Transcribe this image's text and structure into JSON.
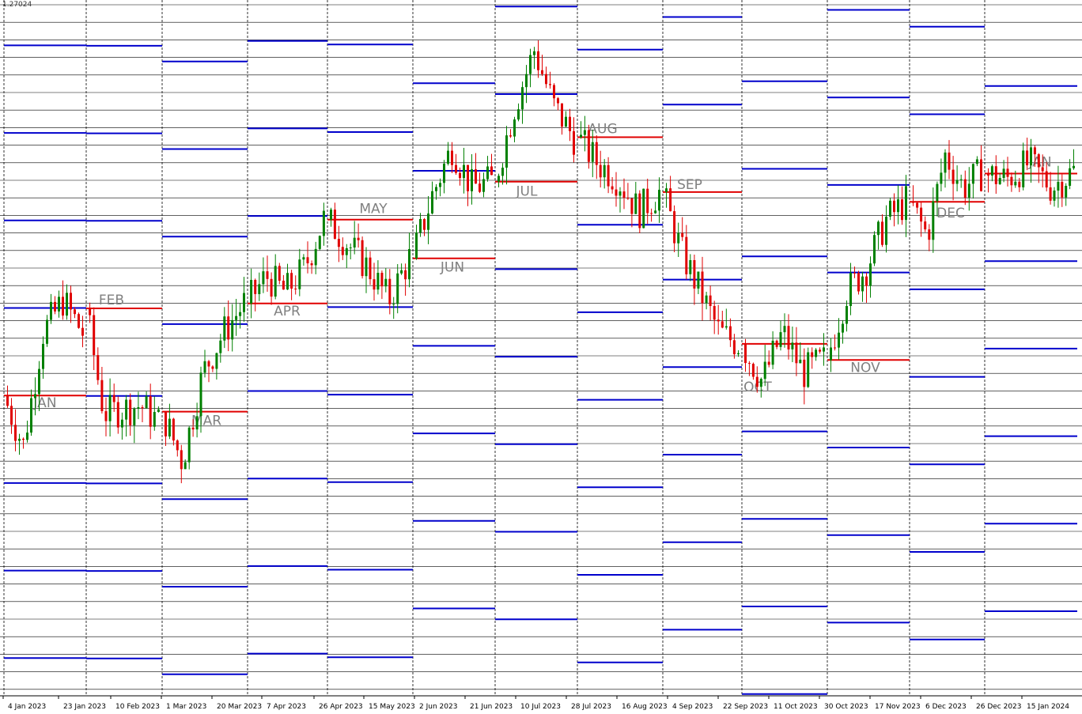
{
  "price_label": "1.27024",
  "colors": {
    "background": "#ffffff",
    "bull": "#008000",
    "bear": "#e00000",
    "open_line": "#e00000",
    "level_line": "#0000cc",
    "grid_line": "#000000",
    "month_text": "#808080"
  },
  "chart_data": {
    "type": "candlestick",
    "title": "",
    "xlabel": "",
    "ylabel": "",
    "ylim": [
      1.185,
      1.271
    ],
    "grid": true,
    "x_ticks": [
      "4 Jan 2023",
      "23 Jan 2023",
      "10 Feb 2023",
      "1 Mar 2023",
      "20 Mar 2023",
      "7 Apr 2023",
      "26 Apr 2023",
      "15 May 2023",
      "2 Jun 2023",
      "21 Jun 2023",
      "10 Jul 2023",
      "28 Jul 2023",
      "16 Aug 2023",
      "4 Sep 2023",
      "22 Sep 2023",
      "11 Oct 2023",
      "30 Oct 2023",
      "17 Nov 2023",
      "6 Dec 2023",
      "26 Dec 2023",
      "15 Jan 2024"
    ],
    "months": [
      {
        "label": "JAN",
        "open": 1.2222
      },
      {
        "label": "FEB",
        "open": 1.233
      },
      {
        "label": "MAR",
        "open": 1.2202
      },
      {
        "label": "APR",
        "open": 1.2336
      },
      {
        "label": "MAY",
        "open": 1.244
      },
      {
        "label": "JUN",
        "open": 1.2392
      },
      {
        "label": "JUL",
        "open": 1.2487
      },
      {
        "label": "AUG",
        "open": 1.2542
      },
      {
        "label": "SEP",
        "open": 1.2474
      },
      {
        "label": "OCT",
        "open": 1.2286
      },
      {
        "label": "NOV",
        "open": 1.2266
      },
      {
        "label": "DEC",
        "open": 1.2462
      },
      {
        "label": "JAN",
        "open": 1.2497
      }
    ],
    "daily_close_path": [
      [
        1.2222,
        1.216,
        1.23,
        1.234,
        1.23
      ],
      [
        1.233,
        1.22,
        1.2205,
        1.221,
        1.219
      ],
      [
        1.2202,
        1.214,
        1.225,
        1.23,
        1.2336
      ],
      [
        1.2336,
        1.237,
        1.235,
        1.238,
        1.244
      ],
      [
        1.244,
        1.241,
        1.238,
        1.234,
        1.2392
      ],
      [
        1.2392,
        1.247,
        1.253,
        1.248,
        1.2487
      ],
      [
        1.2487,
        1.258,
        1.265,
        1.258,
        1.2542
      ],
      [
        1.2542,
        1.251,
        1.249,
        1.245,
        1.2474
      ],
      [
        1.2474,
        1.24,
        1.235,
        1.23,
        1.2286
      ],
      [
        1.2286,
        1.224,
        1.23,
        1.225,
        1.2266
      ],
      [
        1.2266,
        1.235,
        1.238,
        1.244,
        1.2462
      ],
      [
        1.2462,
        1.242,
        1.252,
        1.248,
        1.2497
      ],
      [
        1.2497,
        1.249,
        1.251,
        1.248,
        1.25
      ]
    ]
  }
}
